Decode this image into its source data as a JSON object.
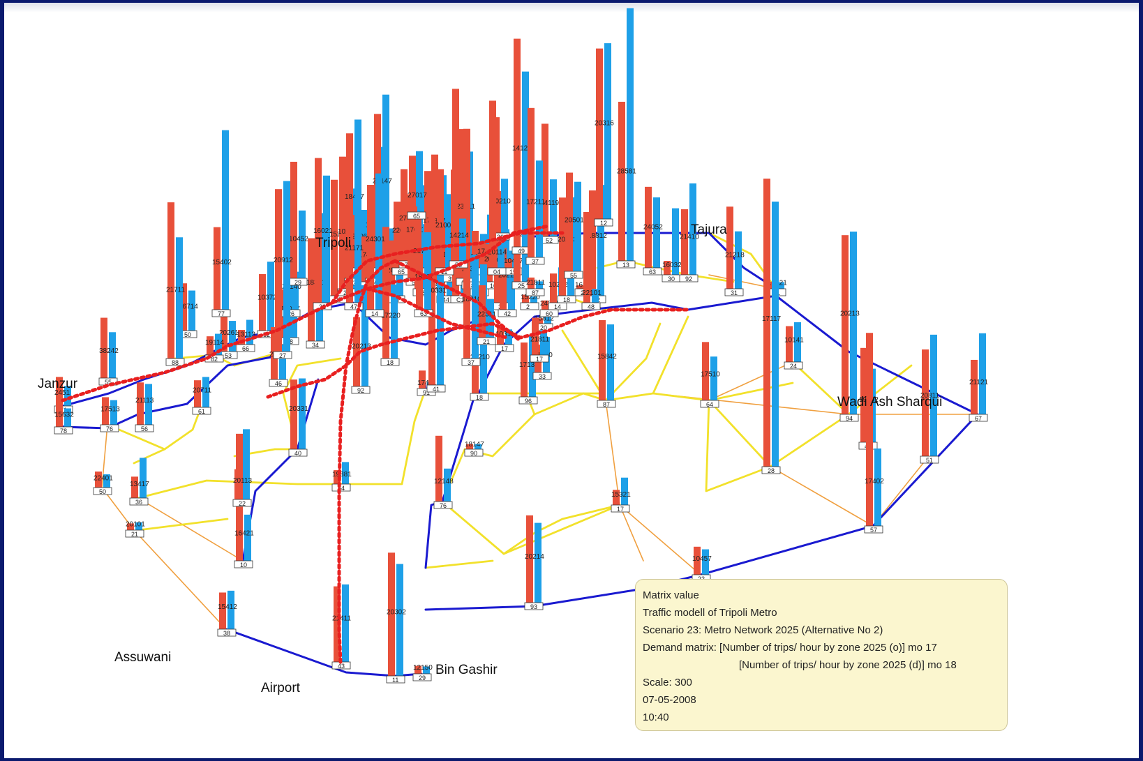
{
  "colors": {
    "background": "#0b1a6e",
    "panel": "#ffffff",
    "bar_from": "#e8503a",
    "bar_to": "#1ea0e8",
    "line_main": "#1a1ad0",
    "line_secondary": "#f2e12b",
    "line_minor": "#f0a040",
    "metro": "#e82020"
  },
  "cities": [
    {
      "id": "janzur",
      "label": "Janzur"
    },
    {
      "id": "tripoli",
      "label": "Tripoli"
    },
    {
      "id": "tajura",
      "label": "Tajura"
    },
    {
      "id": "wadi",
      "label": "Wadi Ash Sharqui"
    },
    {
      "id": "assuwani",
      "label": "Assuwani"
    },
    {
      "id": "airport",
      "label": "Airport"
    },
    {
      "id": "bin",
      "label": "Bin Gashir"
    }
  ],
  "zones": [
    {
      "id": "z1",
      "from": 12480,
      "to": 8600,
      "label": "2451",
      "box": "71"
    },
    {
      "id": "z2",
      "from": 9810,
      "to": 7960,
      "label": "15632",
      "box": "78"
    },
    {
      "id": "z3",
      "from": 11870,
      "to": 10600,
      "label": "17513",
      "box": "76"
    },
    {
      "id": "z4",
      "from": 18220,
      "to": 17560,
      "label": "21113",
      "box": "56"
    },
    {
      "id": "z5",
      "from": 25940,
      "to": 19720,
      "label": "38242",
      "box": "55"
    },
    {
      "id": "z6",
      "from": 20340,
      "to": 17240,
      "label": "26714",
      "box": "50"
    },
    {
      "id": "z7",
      "from": 11650,
      "to": 13080,
      "label": "20711",
      "box": "61"
    },
    {
      "id": "z8",
      "from": 18190,
      "to": 13180,
      "label": "20261",
      "box": "53"
    },
    {
      "id": "z9",
      "from": 6310,
      "to": 10650,
      "label": "13113",
      "box": "66"
    },
    {
      "id": "z10",
      "from": 24300,
      "to": 29660,
      "label": "10372",
      "box": "52"
    },
    {
      "id": "z11",
      "from": 22510,
      "to": 17880,
      "label": "20161",
      "box": "46"
    },
    {
      "id": "z12",
      "from": 20800,
      "to": 26100,
      "label": "12017",
      "box": "38"
    },
    {
      "id": "z13",
      "from": 44230,
      "to": 16310,
      "label": "20140",
      "box": "26"
    },
    {
      "id": "z14",
      "from": 50120,
      "to": 29170,
      "label": "10452",
      "box": "29"
    },
    {
      "id": "z15",
      "from": 44240,
      "to": 55060,
      "label": "18371",
      "box": "34"
    },
    {
      "id": "z16",
      "from": 49880,
      "to": 46280,
      "label": "15232",
      "box": "27"
    },
    {
      "id": "z17",
      "from": 56810,
      "to": 43100,
      "label": "10216",
      "box": "24"
    },
    {
      "id": "z18",
      "from": 62340,
      "to": 62140,
      "label": "18417",
      "box": "23"
    },
    {
      "id": "z19",
      "from": 22780,
      "to": 24910,
      "label": "20062",
      "box": "33"
    },
    {
      "id": "z20",
      "from": 19460,
      "to": 24920,
      "label": "17412",
      "box": "40"
    },
    {
      "id": "z21",
      "from": 40200,
      "to": 56500,
      "label": "12881",
      "box": "60"
    },
    {
      "id": "z22",
      "from": 66210,
      "to": 74500,
      "label": "23147",
      "box": "57"
    },
    {
      "id": "z23",
      "from": 15950,
      "to": 19960,
      "label": "19201",
      "box": "87"
    },
    {
      "id": "z24",
      "from": 23800,
      "to": 18400,
      "label": "20433",
      "box": "64"
    },
    {
      "id": "z25",
      "from": 28480,
      "to": 27530,
      "label": "22011",
      "box": "65"
    },
    {
      "id": "z26",
      "from": 39450,
      "to": 31640,
      "label": "27521",
      "box": "74"
    },
    {
      "id": "z27",
      "from": 36140,
      "to": 54690,
      "label": "17011",
      "box": "59"
    },
    {
      "id": "z28",
      "from": 35420,
      "to": 27830,
      "label": "21720",
      "box": "58"
    },
    {
      "id": "z29",
      "from": 41640,
      "to": 35470,
      "label": "17214",
      "box": "54"
    },
    {
      "id": "z30",
      "from": 54710,
      "to": 45840,
      "label": "18471",
      "box": "51"
    },
    {
      "id": "z31",
      "from": 31600,
      "to": 27390,
      "label": "18401",
      "box": "44"
    },
    {
      "id": "z32",
      "from": 14310,
      "to": 16820,
      "label": "10214",
      "box": "39"
    },
    {
      "id": "z33",
      "from": 89000,
      "to": 26990,
      "label": "28141",
      "box": "C1"
    },
    {
      "id": "z34",
      "from": 64180,
      "to": 54500,
      "label": "23811",
      "box": "57"
    },
    {
      "id": "z35",
      "from": 8330,
      "to": 9520,
      "label": "21313",
      "box": "48"
    },
    {
      "id": "z36",
      "from": 24910,
      "to": 23590,
      "label": "14215",
      "box": "80"
    },
    {
      "id": "z37",
      "from": 11240,
      "to": 22900,
      "label": "17401",
      "box": "14"
    },
    {
      "id": "z38",
      "from": 16160,
      "to": 19690,
      "label": "20201",
      "box": "10"
    },
    {
      "id": "z39",
      "from": 48040,
      "to": 31640,
      "label": "20213",
      "box": "37"
    },
    {
      "id": "z40",
      "from": 26510,
      "to": 25370,
      "label": "20210",
      "box": "42"
    },
    {
      "id": "z41",
      "from": 3830,
      "to": 4940,
      "label": "10477",
      "box": "15"
    },
    {
      "id": "z42",
      "from": 35330,
      "to": 46410,
      "label": "20211",
      "box": "25"
    },
    {
      "id": "z43",
      "from": 3430,
      "to": 2640,
      "label": "15220",
      "box": "2"
    },
    {
      "id": "z44",
      "from": 4840,
      "to": 3200,
      "label": "21811",
      "box": "87"
    },
    {
      "id": "z45",
      "from": 2320,
      "to": 5650,
      "label": "15812",
      "box": "20"
    },
    {
      "id": "z46",
      "from": 3960,
      "to": 3270,
      "label": "24211",
      "box": "60"
    },
    {
      "id": "z47",
      "from": 12570,
      "to": 15200,
      "label": "10272",
      "box": "14"
    },
    {
      "id": "z48",
      "from": 42230,
      "to": 42360,
      "label": "20163",
      "box": "18"
    },
    {
      "id": "z49",
      "from": 42450,
      "to": 38500,
      "label": "20501",
      "box": "55"
    },
    {
      "id": "z50",
      "from": 1480,
      "to": 4210,
      "label": "16520",
      "box": "28"
    },
    {
      "id": "z51",
      "from": 45300,
      "to": 47650,
      "label": "18812",
      "box": "22"
    },
    {
      "id": "z52",
      "from": 34510,
      "to": 32670,
      "label": "15842",
      "box": "87"
    },
    {
      "id": "z53",
      "from": 73330,
      "to": 75600,
      "label": "20316",
      "box": "12"
    },
    {
      "id": "z54",
      "from": 68420,
      "to": 108670,
      "label": "28581",
      "box": "13"
    },
    {
      "id": "z55",
      "from": 34850,
      "to": 30310,
      "label": "24052",
      "box": "63"
    },
    {
      "id": "z56",
      "from": 6000,
      "to": 28620,
      "label": "16032",
      "box": "30"
    },
    {
      "id": "z57",
      "from": 28210,
      "to": 39320,
      "label": "21410",
      "box": "92"
    },
    {
      "id": "z58",
      "from": 35330,
      "to": 24700,
      "label": "21218",
      "box": "31"
    },
    {
      "id": "z59",
      "from": 3040,
      "to": 2870,
      "label": "18421",
      "box": "61"
    },
    {
      "id": "z60",
      "from": 15430,
      "to": 17120,
      "label": "10141",
      "box": "24"
    },
    {
      "id": "z61",
      "from": 77050,
      "to": 78600,
      "label": "20213",
      "box": "94"
    },
    {
      "id": "z62",
      "from": 40560,
      "to": 31620,
      "label": "19402",
      "box": "43"
    },
    {
      "id": "z63",
      "from": 83030,
      "to": 33310,
      "label": "17402",
      "box": "57"
    },
    {
      "id": "z64",
      "from": 23420,
      "to": 34860,
      "label": "21121",
      "box": "67"
    },
    {
      "id": "z65",
      "from": 45900,
      "to": 52250,
      "label": "20811",
      "box": "51"
    },
    {
      "id": "z66",
      "from": 25100,
      "to": 18850,
      "label": "17510",
      "box": "64"
    },
    {
      "id": "z67",
      "from": 123870,
      "to": 114000,
      "label": "17117",
      "box": "28"
    },
    {
      "id": "z68",
      "from": 12060,
      "to": 10940,
      "label": "10457",
      "box": "22"
    },
    {
      "id": "z69",
      "from": 6530,
      "to": 11780,
      "label": "15321",
      "box": "17"
    },
    {
      "id": "z70",
      "from": 37550,
      "to": 34320,
      "label": "20214",
      "box": "93"
    },
    {
      "id": "z71",
      "from": 23380,
      "to": 26580,
      "label": "17131",
      "box": "96"
    },
    {
      "id": "z72",
      "from": 12010,
      "to": 15270,
      "label": "21810",
      "box": "33"
    },
    {
      "id": "z73",
      "from": 26760,
      "to": 55500,
      "label": "20210",
      "box": "18"
    },
    {
      "id": "z74",
      "from": 2210,
      "to": 2230,
      "label": "18147",
      "box": "90"
    },
    {
      "id": "z75",
      "from": 7730,
      "to": 2850,
      "label": "17401",
      "box": "91"
    },
    {
      "id": "z76",
      "from": 29800,
      "to": 43510,
      "label": "20213",
      "box": "92"
    },
    {
      "id": "z77",
      "from": 5980,
      "to": 9480,
      "label": "19881",
      "box": "54"
    },
    {
      "id": "z78",
      "from": 32520,
      "to": 33350,
      "label": "21411",
      "box": "43"
    },
    {
      "id": "z79",
      "from": 3440,
      "to": 3180,
      "label": "12150",
      "box": "29"
    },
    {
      "id": "z80",
      "from": 53000,
      "to": 48140,
      "label": "20302",
      "box": "11"
    },
    {
      "id": "z81",
      "from": 15760,
      "to": 16540,
      "label": "15412",
      "box": "38"
    },
    {
      "id": "z82",
      "from": 54640,
      "to": 19850,
      "label": "16421",
      "box": "10"
    },
    {
      "id": "z83",
      "from": 13000,
      "to": 30200,
      "label": "20113",
      "box": "22"
    },
    {
      "id": "z84",
      "from": 9200,
      "to": 17300,
      "label": "13417",
      "box": "36"
    },
    {
      "id": "z85",
      "from": 2880,
      "to": 3320,
      "label": "20101",
      "box": "21"
    },
    {
      "id": "z86",
      "from": 6900,
      "to": 5700,
      "label": "22401",
      "box": "50"
    },
    {
      "id": "z87",
      "from": 28270,
      "to": 14170,
      "label": "12148",
      "box": "76"
    },
    {
      "id": "z88",
      "from": 29960,
      "to": 30450,
      "label": "20331",
      "box": "40"
    },
    {
      "id": "z89",
      "from": 8060,
      "to": 9140,
      "label": "19114",
      "box": "82"
    },
    {
      "id": "z90",
      "from": 67180,
      "to": 52130,
      "label": "21711",
      "box": "88"
    },
    {
      "id": "z91",
      "from": 35500,
      "to": 77220,
      "label": "15402",
      "box": "77"
    },
    {
      "id": "z92",
      "from": 69850,
      "to": 73350,
      "label": "20912",
      "box": "27"
    },
    {
      "id": "z93",
      "from": 56600,
      "to": 31870,
      "label": "17220",
      "box": "18"
    },
    {
      "id": "z94",
      "from": 75000,
      "to": 72400,
      "label": "20331",
      "box": "41"
    },
    {
      "id": "z95",
      "from": 98790,
      "to": 44680,
      "label": "18810",
      "box": "37"
    },
    {
      "id": "z96",
      "from": 41130,
      "to": 78770,
      "label": "21171",
      "box": "47"
    },
    {
      "id": "z97",
      "from": 62250,
      "to": 54680,
      "label": "16021",
      "box": "32"
    },
    {
      "id": "z98",
      "from": 53360,
      "to": 58600,
      "label": "24301",
      "box": "14"
    },
    {
      "id": "z99",
      "from": 24000,
      "to": 33300,
      "label": "18411",
      "box": "63"
    },
    {
      "id": "z100",
      "from": 22500,
      "to": 16610,
      "label": "22311",
      "box": "21"
    },
    {
      "id": "z101",
      "from": 7420,
      "to": 6510,
      "label": "10311",
      "box": "17"
    },
    {
      "id": "z102",
      "from": 16050,
      "to": 10720,
      "label": "21811",
      "box": "17"
    },
    {
      "id": "z103",
      "from": 39000,
      "to": 5910,
      "label": "22101",
      "box": "48"
    },
    {
      "id": "z104",
      "from": 49780,
      "to": 23310,
      "label": "20210",
      "box": "30"
    },
    {
      "id": "z105",
      "from": 48480,
      "to": 24560,
      "label": "14119",
      "box": "52"
    },
    {
      "id": "z106",
      "from": 24230,
      "to": 11550,
      "label": "27017",
      "box": "65"
    },
    {
      "id": "z107",
      "from": 42440,
      "to": 31700,
      "label": "21001",
      "box": "11"
    },
    {
      "id": "z108",
      "from": 39260,
      "to": 18150,
      "label": "14214",
      "box": "58"
    },
    {
      "id": "z109",
      "from": 71890,
      "to": 10760,
      "label": "20114",
      "box": "04"
    },
    {
      "id": "z110",
      "from": 89540,
      "to": 75420,
      "label": "14121",
      "box": "49"
    },
    {
      "id": "z111",
      "from": 64260,
      "to": 41650,
      "label": "17211",
      "box": "37"
    }
  ],
  "legend": {
    "heading": "Matrix value",
    "model": "Traffic modell of Tripoli Metro",
    "scenario": "Scenario 23: Metro Network 2025 (Alternative No 2)",
    "demand_from": "Demand matrix: [Number of trips/ hour by zone 2025 (o)] mo 17",
    "demand_to": "[Number of trips/ hour by zone 2025 (d)] mo 18",
    "scale": "Scale: 300",
    "date": "07-05-2008",
    "time": "10:40"
  }
}
